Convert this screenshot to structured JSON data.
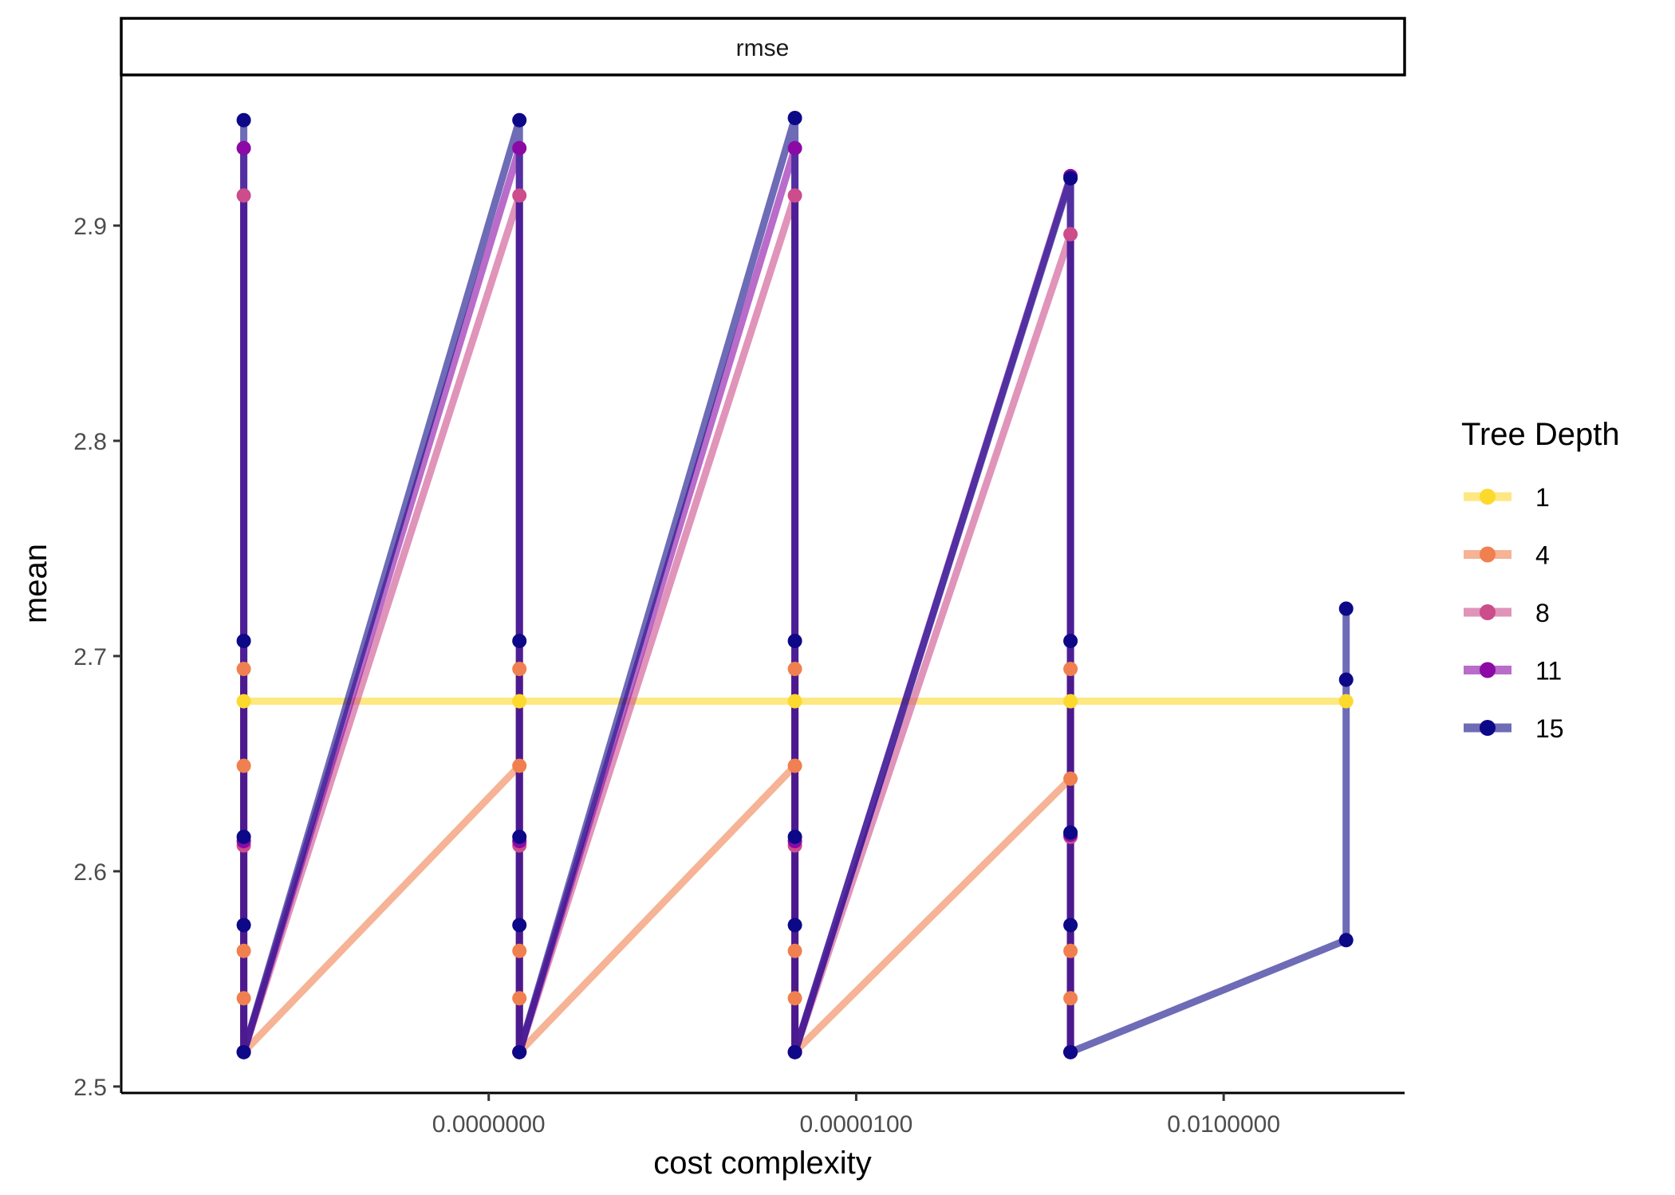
{
  "chart_data": {
    "type": "line",
    "facet_label": "rmse",
    "xlabel": "cost complexity",
    "ylabel": "mean",
    "x_scale": "log10",
    "xlim": [
      1e-11,
      0.3
    ],
    "ylim": [
      2.497,
      2.97
    ],
    "x_ticks": [
      {
        "value": 1e-08,
        "label": "0.0000000"
      },
      {
        "value": 1e-05,
        "label": "0.0000100"
      },
      {
        "value": 0.01,
        "label": "0.0100000"
      }
    ],
    "y_ticks": [
      {
        "value": 2.5,
        "label": "2.5"
      },
      {
        "value": 2.6,
        "label": "2.6"
      },
      {
        "value": 2.7,
        "label": "2.7"
      },
      {
        "value": 2.8,
        "label": "2.8"
      },
      {
        "value": 2.9,
        "label": "2.9"
      }
    ],
    "legend_title": "Tree Depth",
    "legend_position": "right",
    "grid": false,
    "x": [
      1e-10,
      1.78e-08,
      3.16e-06,
      0.000562,
      0.1
    ],
    "series": [
      {
        "name": "1",
        "color": "#FCD92D",
        "points": [
          [
            1e-10,
            2.679
          ],
          [
            1.78e-08,
            2.679
          ],
          [
            3.16e-06,
            2.679
          ],
          [
            0.000562,
            2.679
          ],
          [
            0.1,
            2.679
          ]
        ]
      },
      {
        "name": "4",
        "color": "#F0804F",
        "points": [
          [
            1e-10,
            2.694
          ],
          [
            1e-10,
            2.649
          ],
          [
            1e-10,
            2.563
          ],
          [
            1e-10,
            2.541
          ],
          [
            1e-10,
            2.516
          ],
          [
            1.78e-08,
            2.649
          ],
          [
            1.78e-08,
            2.694
          ],
          [
            1.78e-08,
            2.563
          ],
          [
            1.78e-08,
            2.541
          ],
          [
            1.78e-08,
            2.516
          ],
          [
            3.16e-06,
            2.649
          ],
          [
            3.16e-06,
            2.694
          ],
          [
            3.16e-06,
            2.563
          ],
          [
            3.16e-06,
            2.541
          ],
          [
            3.16e-06,
            2.516
          ],
          [
            0.000562,
            2.643
          ],
          [
            0.000562,
            2.694
          ],
          [
            0.000562,
            2.563
          ],
          [
            0.000562,
            2.541
          ],
          [
            0.000562,
            2.516
          ]
        ]
      },
      {
        "name": "8",
        "color": "#CC4C8C",
        "points": [
          [
            1e-10,
            2.914
          ],
          [
            1e-10,
            2.612
          ],
          [
            1e-10,
            2.516
          ],
          [
            1.78e-08,
            2.914
          ],
          [
            1.78e-08,
            2.612
          ],
          [
            1.78e-08,
            2.516
          ],
          [
            3.16e-06,
            2.914
          ],
          [
            3.16e-06,
            2.612
          ],
          [
            3.16e-06,
            2.516
          ],
          [
            0.000562,
            2.896
          ],
          [
            0.000562,
            2.616
          ],
          [
            0.000562,
            2.516
          ]
        ]
      },
      {
        "name": "11",
        "color": "#8B0AA5",
        "points": [
          [
            1e-10,
            2.936
          ],
          [
            1e-10,
            2.614
          ],
          [
            1e-10,
            2.516
          ],
          [
            1.78e-08,
            2.936
          ],
          [
            1.78e-08,
            2.614
          ],
          [
            1.78e-08,
            2.516
          ],
          [
            3.16e-06,
            2.936
          ],
          [
            3.16e-06,
            2.614
          ],
          [
            3.16e-06,
            2.516
          ],
          [
            0.000562,
            2.923
          ],
          [
            0.000562,
            2.617
          ],
          [
            0.000562,
            2.516
          ]
        ]
      },
      {
        "name": "15",
        "color": "#0D0887",
        "points": [
          [
            1e-10,
            2.949
          ],
          [
            1e-10,
            2.707
          ],
          [
            1e-10,
            2.616
          ],
          [
            1e-10,
            2.575
          ],
          [
            1e-10,
            2.516
          ],
          [
            1.78e-08,
            2.949
          ],
          [
            1.78e-08,
            2.707
          ],
          [
            1.78e-08,
            2.616
          ],
          [
            1.78e-08,
            2.575
          ],
          [
            1.78e-08,
            2.516
          ],
          [
            3.16e-06,
            2.95
          ],
          [
            3.16e-06,
            2.707
          ],
          [
            3.16e-06,
            2.616
          ],
          [
            3.16e-06,
            2.575
          ],
          [
            3.16e-06,
            2.516
          ],
          [
            0.000562,
            2.922
          ],
          [
            0.000562,
            2.707
          ],
          [
            0.000562,
            2.618
          ],
          [
            0.000562,
            2.575
          ],
          [
            0.000562,
            2.516
          ],
          [
            0.1,
            2.568
          ],
          [
            0.1,
            2.722
          ],
          [
            0.1,
            2.689
          ]
        ]
      }
    ]
  }
}
